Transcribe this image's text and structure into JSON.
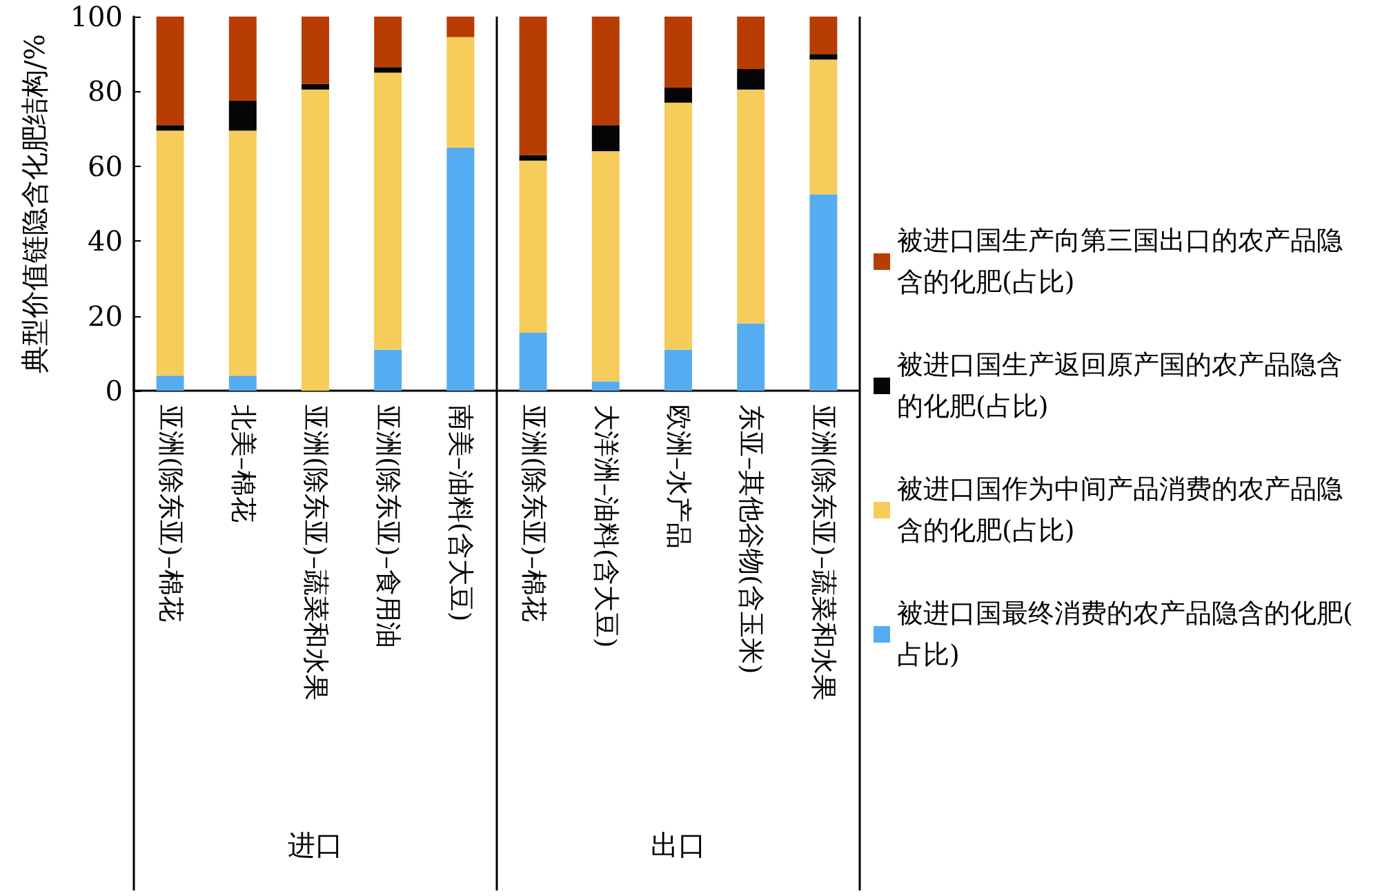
{
  "chart_data": {
    "type": "bar",
    "stacked": true,
    "ylabel": "典型价值链隐含化肥结构/%",
    "categories": [
      "亚洲(除东亚)–棉花",
      "北美–棉花",
      "亚洲(除东亚)–蔬菜和水果",
      "亚洲(除东亚)–食用油",
      "南美–油料(含大豆)",
      "亚洲(除东亚)–棉花",
      "大洋洲–油料(含大豆)",
      "欧洲–水产品",
      "东亚–其他谷物(含玉米)",
      "亚洲(除东亚)–蔬菜和水果"
    ],
    "series": [
      {
        "name": "被进口国最终消费的农产品隐含的化肥(占比)",
        "color": "#56acf1",
        "values": [
          4,
          4,
          0,
          11,
          65,
          15.5,
          2.5,
          11,
          18,
          52.5
        ]
      },
      {
        "name": "被进口国作为中间产品消费的农产品隐含的化肥(占比)",
        "color": "#f6cc5a",
        "values": [
          65.5,
          65.5,
          80.5,
          74,
          29.5,
          46,
          61.5,
          66,
          62.5,
          36
        ]
      },
      {
        "name": "被进口国生产返回原产国的农产品隐含的化肥(占比)",
        "color": "#050505",
        "values": [
          1.5,
          8,
          1.5,
          1.5,
          0,
          1.5,
          7,
          4,
          5.5,
          1.5
        ]
      },
      {
        "name": "被进口国生产向第三国出口的农产品隐含的化肥(占比)",
        "color": "#b83d02",
        "values": [
          29,
          22.5,
          18,
          13.5,
          5.5,
          37,
          29,
          19,
          14,
          10
        ]
      }
    ],
    "ylim": [
      0,
      100
    ],
    "yticks": [
      0,
      20,
      40,
      60,
      80,
      100
    ],
    "grid": false,
    "legend": "right",
    "annotations": [
      "进口",
      "出口"
    ]
  }
}
